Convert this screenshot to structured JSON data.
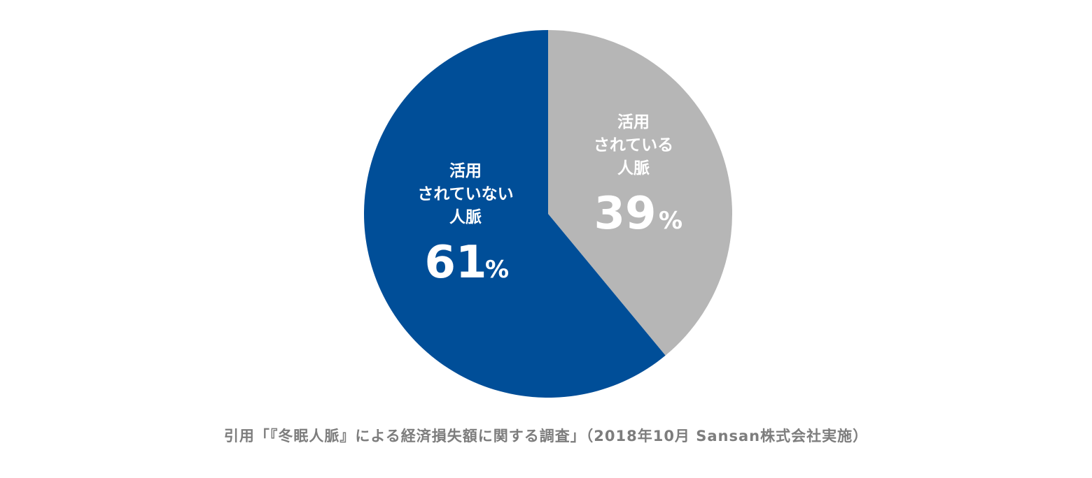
{
  "chart_data": {
    "type": "pie",
    "start_angle": "12 o'clock",
    "direction": "clockwise",
    "slices": [
      {
        "label_lines": [
          "活用",
          "されている",
          "人脈"
        ],
        "value": 39,
        "value_text": "39",
        "unit": "%",
        "color": "#b6b6b6"
      },
      {
        "label_lines": [
          "活用",
          "されていない",
          "人脈"
        ],
        "value": 61,
        "value_text": "61",
        "unit": "%",
        "color": "#004e98"
      }
    ],
    "label_color": "#ffffff"
  },
  "source": "引用「『冬眠人脈』による経済損失額に関する調査」（2018年10月 Sansan株式会社実施）"
}
